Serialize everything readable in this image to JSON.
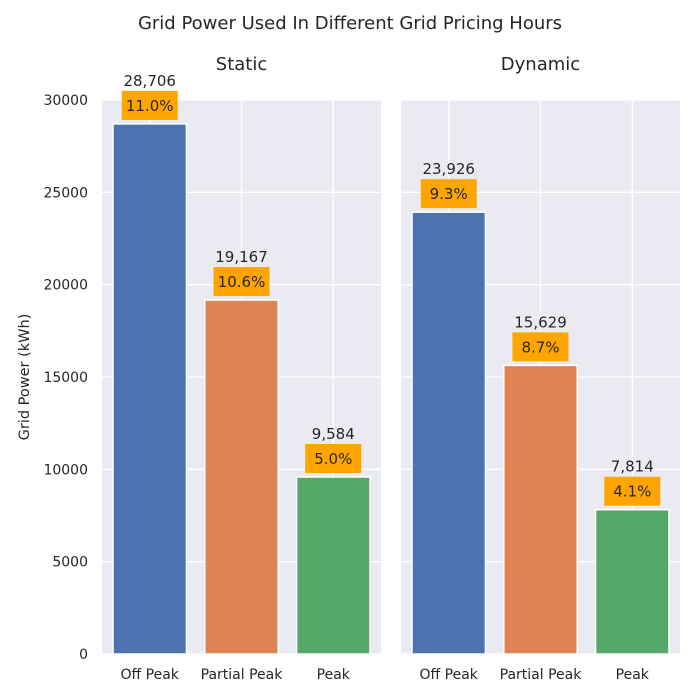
{
  "title": "Grid Power Used In Different Grid Pricing Hours",
  "chart_data": [
    {
      "type": "bar",
      "title": "Static",
      "xlabel": "",
      "ylabel": "Grid Power (kWh)",
      "categories": [
        "Off Peak",
        "Partial Peak",
        "Peak"
      ],
      "values": [
        28706,
        19167,
        9584
      ],
      "value_labels": [
        "28,706",
        "19,167",
        "9,584"
      ],
      "percent_labels": [
        "11.0%",
        "10.6%",
        "5.0%"
      ],
      "colors": [
        "#4c72b0",
        "#dd8452",
        "#55a868"
      ],
      "ylim": [
        0,
        30000
      ],
      "yticks": [
        "0",
        "5000",
        "10000",
        "15000",
        "20000",
        "25000",
        "30000"
      ],
      "grid": true
    },
    {
      "type": "bar",
      "title": "Dynamic",
      "xlabel": "",
      "ylabel": "",
      "categories": [
        "Off Peak",
        "Partial Peak",
        "Peak"
      ],
      "values": [
        23926,
        15629,
        7814
      ],
      "value_labels": [
        "23,926",
        "15,629",
        "7,814"
      ],
      "percent_labels": [
        "9.3%",
        "8.7%",
        "4.1%"
      ],
      "colors": [
        "#4c72b0",
        "#dd8452",
        "#55a868"
      ],
      "ylim": [
        0,
        30000
      ],
      "grid": true
    }
  ],
  "label_box_color": "#ffa500",
  "panel_bg_color": "#eaeaf2"
}
